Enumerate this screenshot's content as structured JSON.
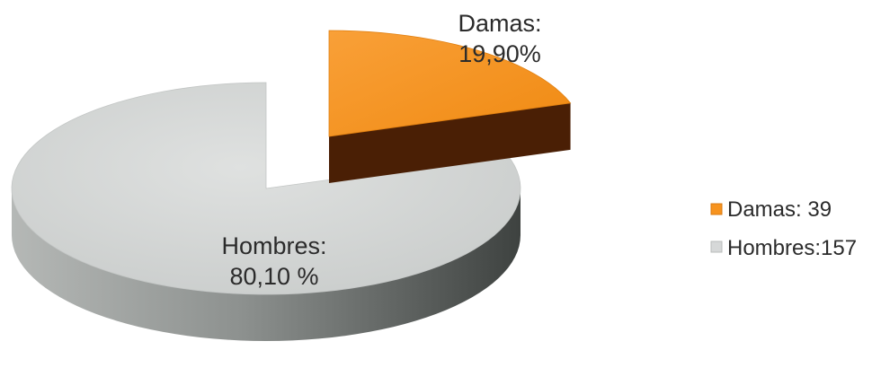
{
  "chart_data": {
    "type": "pie",
    "style": "3d-exploded",
    "slices": [
      {
        "label": "Damas",
        "value": 39,
        "percent": 19.9,
        "label_line1": "Damas:",
        "label_line2": "19,90%",
        "legend_text": "Damas: 39",
        "color_top": "#f7931e",
        "color_side": "#4a1f05",
        "exploded": true
      },
      {
        "label": "Hombres",
        "value": 157,
        "percent": 80.1,
        "label_line1": "Hombres:",
        "label_line2": "80,10 %",
        "legend_text": "Hombres:157",
        "color_top": "#d6d8d8",
        "color_side": "#5b605e",
        "exploded": false
      }
    ],
    "legend_position": "right"
  }
}
